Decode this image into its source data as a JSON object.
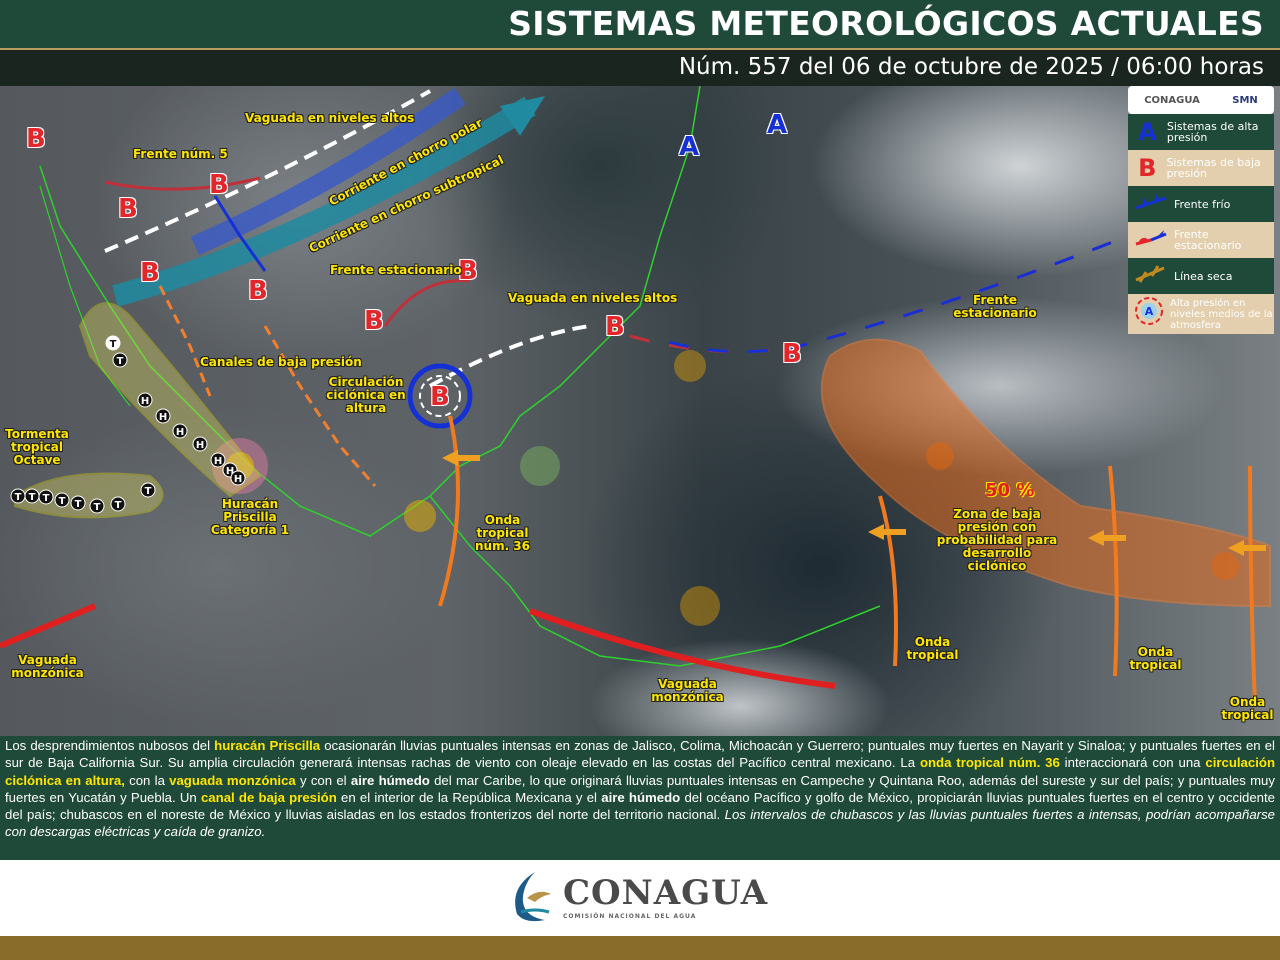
{
  "header": {
    "title": "SISTEMAS METEOROLÓGICOS ACTUALES",
    "subtitle": "Núm. 557 del 06 de octubre de 2025 / 06:00 horas"
  },
  "legend": {
    "logos": [
      "CONAGUA",
      "SMN"
    ],
    "items": [
      {
        "symbol": "A",
        "label": "Sistemas de alta presión",
        "color": "#1531d6"
      },
      {
        "symbol": "B",
        "label": "Sistemas de baja presión",
        "color": "#e3262a"
      },
      {
        "symbol": "cold-front-icon",
        "label": "Frente frío"
      },
      {
        "symbol": "stationary-front-icon",
        "label": "Frente estacionario"
      },
      {
        "symbol": "dry-line-icon",
        "label": "Línea seca"
      },
      {
        "symbol": "A",
        "label": "Alta presión en niveles medios de la atmosfera"
      }
    ]
  },
  "map": {
    "labels": [
      "Vaguada en niveles altos",
      "Frente núm. 5",
      "Corriente en chorro polar",
      "Corriente en chorro subtropical",
      "Frente estacionario",
      "Vaguada en niveles altos",
      "Canales de baja presión",
      "Circulación ciclónica en altura",
      "Tormenta tropical Octave",
      "Huracán Priscilla Categoría 1",
      "Onda tropical núm. 36",
      "Vaguada monzónica",
      "Vaguada monzónica",
      "Frente estacionario",
      "50 %",
      "Zona de baja presión con probabilidad para desarrollo ciclónico",
      "Onda tropical",
      "Onda tropical",
      "Onda tropical"
    ],
    "low": "B",
    "high": "A",
    "storm_marker": "T",
    "hurricane_marker": "H"
  },
  "bulletin": {
    "p1": "Los desprendimientos nubosos del ",
    "h1": "huracán Priscilla",
    "p2": " ocasionarán lluvias puntuales intensas en zonas de Jalisco, Colima, Michoacán y Guerrero; puntuales muy fuertes en Nayarit y Sinaloa; y puntuales fuertes en el sur de Baja California Sur. Su amplia circulación generará intensas rachas de viento con oleaje elevado en las costas del Pacífico central mexicano. La ",
    "h2": "onda tropical núm. 36",
    "p3": " interaccionará con una ",
    "h3": "circulación ciclónica en altura,",
    "p4": " con la ",
    "h4": "vaguada monzónica",
    "p5": " y con el ",
    "b1": "aire húmedo",
    "p6": " del mar Caribe, lo que originará lluvias puntuales intensas en Campeche y Quintana Roo, además del sureste y sur del país; y puntuales muy fuertes en Yucatán y Puebla. Un ",
    "h5": "canal de baja presión",
    "p7": " en el interior de la República Mexicana y el ",
    "b2": "aire húmedo",
    "p8": " del océano Pacífico y golfo de México, propiciarán lluvias puntuales fuertes en el centro y occidente del país; chubascos en el noreste de México y lluvias aisladas en los estados fronterizos del norte del territorio nacional. ",
    "i1": "Los intervalos de chubascos y las lluvias puntuales fuertes a intensas, podrían acompañarse con descargas eléctricas y caída de granizo."
  },
  "footer": {
    "logo": "CONAGUA",
    "logo_sub": "COMISIÓN NACIONAL DEL AGUA"
  }
}
